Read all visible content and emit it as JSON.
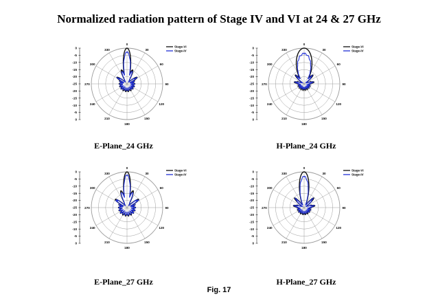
{
  "page": {
    "title": "Normalized radiation pattern of Stage IV and VI at 24 & 27 GHz",
    "figure_label": "Fig. 17"
  },
  "colors": {
    "stage_vi": "#111111",
    "stage_iv": "#1f2fd6",
    "grid": "#9a9a9a"
  },
  "chart_data": [
    {
      "type": "polar",
      "title": "E-Plane_24 GHz",
      "angle_ticks": [
        "0",
        "30",
        "60",
        "90",
        "120",
        "150",
        "180",
        "210",
        "240",
        "270",
        "300",
        "330"
      ],
      "radial_ticks": [
        "0",
        "-5",
        "-10",
        "-15",
        "-20",
        "-25",
        "-20",
        "-15",
        "-10",
        "-5",
        "0"
      ],
      "rlim": [
        -25,
        0
      ],
      "legend": [
        "Stage-VI",
        "Stage-IV"
      ],
      "beam": {
        "main_width_deg": 14,
        "side_level": 0.42,
        "side_angle_deg": 22,
        "back_level": 0.22
      },
      "series": [
        {
          "name": "Stage-VI",
          "peak_db": 0
        },
        {
          "name": "Stage-IV",
          "peak_db": -2
        }
      ]
    },
    {
      "type": "polar",
      "title": "H-Plane_24 GHz",
      "angle_ticks": [
        "0",
        "30",
        "60",
        "90",
        "120",
        "150",
        "180",
        "210",
        "240",
        "270",
        "300",
        "330"
      ],
      "radial_ticks": [
        "0",
        "-5",
        "-10",
        "-15",
        "-20",
        "-25",
        "-20",
        "-15",
        "-10",
        "-5",
        "0"
      ],
      "rlim": [
        -25,
        0
      ],
      "legend": [
        "Stage-VI",
        "Stage-IV"
      ],
      "beam": {
        "main_width_deg": 30,
        "side_level": 0.35,
        "side_angle_deg": 45,
        "back_level": 0.18
      },
      "series": [
        {
          "name": "Stage-VI",
          "peak_db": 0
        },
        {
          "name": "Stage-IV",
          "peak_db": -3
        }
      ]
    },
    {
      "type": "polar",
      "title": "E-Plane_27 GHz",
      "angle_ticks": [
        "0",
        "30",
        "60",
        "90",
        "120",
        "150",
        "180",
        "210",
        "240",
        "270",
        "300",
        "330"
      ],
      "radial_ticks": [
        "0",
        "-5",
        "-10",
        "-15",
        "-20",
        "-25",
        "-20",
        "-15",
        "-10",
        "-5",
        "0"
      ],
      "rlim": [
        -25,
        0
      ],
      "legend": [
        "Stage-VI",
        "Stage-IV"
      ],
      "beam": {
        "main_width_deg": 13,
        "side_level": 0.5,
        "side_angle_deg": 20,
        "back_level": 0.24
      },
      "series": [
        {
          "name": "Stage-VI",
          "peak_db": 0
        },
        {
          "name": "Stage-IV",
          "peak_db": -1.5
        }
      ]
    },
    {
      "type": "polar",
      "title": "H-Plane_27 GHz",
      "angle_ticks": [
        "0",
        "30",
        "60",
        "90",
        "120",
        "150",
        "180",
        "210",
        "240",
        "270",
        "300",
        "330"
      ],
      "radial_ticks": [
        "0",
        "-5",
        "-10",
        "-15",
        "-20",
        "-25",
        "-20",
        "-15",
        "-10",
        "-5",
        "0"
      ],
      "rlim": [
        -25,
        0
      ],
      "legend": [
        "Stage-VI",
        "Stage-IV"
      ],
      "beam": {
        "main_width_deg": 18,
        "side_level": 0.38,
        "side_angle_deg": 45,
        "back_level": 0.2
      },
      "series": [
        {
          "name": "Stage-VI",
          "peak_db": 0
        },
        {
          "name": "Stage-IV",
          "peak_db": -2.5
        }
      ]
    }
  ]
}
